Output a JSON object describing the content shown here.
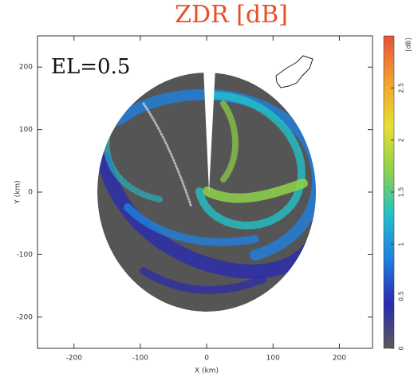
{
  "chart_data": {
    "type": "radar-ppi",
    "title": "ZDR [dB]",
    "annotation": "EL=0.5",
    "xlabel": "X (km)",
    "ylabel": "Y (km)",
    "xlim": [
      -255,
      250
    ],
    "xticks": [
      -200,
      -100,
      0,
      100,
      200
    ],
    "ylim": [
      -250,
      250
    ],
    "yticks": [
      -200,
      -100,
      0,
      100,
      200
    ],
    "colorbar": {
      "label": "[dB]",
      "lim": [
        0,
        3
      ],
      "ticks": [
        0,
        0.5,
        1,
        1.5,
        2,
        2.5
      ],
      "colors": [
        "#5a5a5a",
        "#2a2ab0",
        "#1f7fe0",
        "#22c0c8",
        "#8fd24a",
        "#e8e030",
        "#f0a030",
        "#e8503a"
      ]
    },
    "title_color": "#e8502a"
  }
}
